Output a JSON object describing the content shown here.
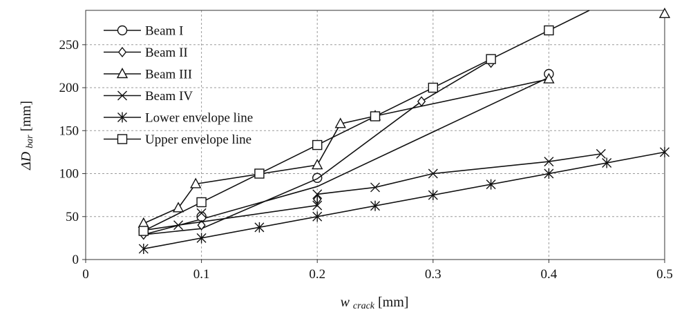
{
  "chart_data": {
    "type": "line",
    "title": "",
    "xlabel_main": "w",
    "xlabel_sub": "crack",
    "xlabel_unit": "[mm]",
    "ylabel_main": "ΔD",
    "ylabel_sub": "bar",
    "ylabel_unit": "[mm]",
    "xlim": [
      0,
      0.5
    ],
    "ylim": [
      0,
      290
    ],
    "x_ticks": [
      0,
      0.1,
      0.2,
      0.3,
      0.4,
      0.5
    ],
    "x_tick_labels": [
      "0",
      "0.1",
      "0.2",
      "0.3",
      "0.4",
      "0.5"
    ],
    "y_ticks": [
      0,
      50,
      100,
      150,
      200,
      250
    ],
    "y_tick_labels": [
      "0",
      "50",
      "100",
      "150",
      "200",
      "250"
    ],
    "grid": true,
    "legend_position": "top-left",
    "series": [
      {
        "name": "Beam I",
        "marker": "circle",
        "x": [
          0.05,
          0.1,
          0.2,
          0.4
        ],
        "y": [
          33,
          50,
          95,
          216
        ],
        "trend": [
          [
            0.05,
            29
          ],
          [
            0.1,
            47
          ],
          [
            0.2,
            85
          ],
          [
            0.4,
            212
          ]
        ]
      },
      {
        "name": "Beam II",
        "marker": "diamond",
        "x": [
          0.05,
          0.1,
          0.2,
          0.29,
          0.35
        ],
        "y": [
          29,
          40,
          70,
          184,
          229
        ],
        "trend": [
          [
            0.05,
            29
          ],
          [
            0.1,
            36
          ],
          [
            0.2,
            94
          ],
          [
            0.29,
            184
          ],
          [
            0.35,
            232
          ]
        ]
      },
      {
        "name": "Beam III",
        "marker": "triangle",
        "x": [
          0.05,
          0.08,
          0.095,
          0.2,
          0.22,
          0.25,
          0.4,
          0.5
        ],
        "y": [
          42,
          60,
          88,
          110,
          158,
          167,
          210,
          286
        ],
        "trend": [
          [
            0.05,
            42
          ],
          [
            0.08,
            60
          ],
          [
            0.095,
            88
          ],
          [
            0.2,
            110
          ],
          [
            0.22,
            158
          ],
          [
            0.25,
            167
          ],
          [
            0.4,
            210
          ]
        ]
      },
      {
        "name": "Beam IV",
        "marker": "x",
        "x": [
          0.05,
          0.08,
          0.1,
          0.2,
          0.2,
          0.25,
          0.3,
          0.4,
          0.445
        ],
        "y": [
          34,
          40,
          54,
          63,
          76,
          84,
          100,
          114,
          123
        ],
        "trend": [
          [
            0.05,
            34
          ],
          [
            0.08,
            40
          ],
          [
            0.2,
            63
          ],
          [
            0.2,
            76
          ],
          [
            0.25,
            84
          ],
          [
            0.3,
            100
          ],
          [
            0.4,
            114
          ],
          [
            0.445,
            123
          ]
        ]
      },
      {
        "name": "Lower envelope line",
        "marker": "asterisk",
        "x": [
          0.05,
          0.1,
          0.15,
          0.2,
          0.25,
          0.3,
          0.35,
          0.4,
          0.45,
          0.5
        ],
        "y": [
          12.5,
          25,
          37.5,
          50,
          62.5,
          75,
          87.5,
          100,
          112.5,
          125
        ],
        "trend": [
          [
            0.05,
            12.5
          ],
          [
            0.5,
            125
          ]
        ]
      },
      {
        "name": "Upper envelope line",
        "marker": "square",
        "x": [
          0.05,
          0.1,
          0.15,
          0.2,
          0.25,
          0.3,
          0.35,
          0.4
        ],
        "y": [
          33.3,
          66.7,
          100,
          133.3,
          166.7,
          200,
          233.3,
          266.7
        ],
        "trend": [
          [
            0.05,
            33.3
          ],
          [
            0.435,
            290
          ]
        ]
      }
    ]
  }
}
